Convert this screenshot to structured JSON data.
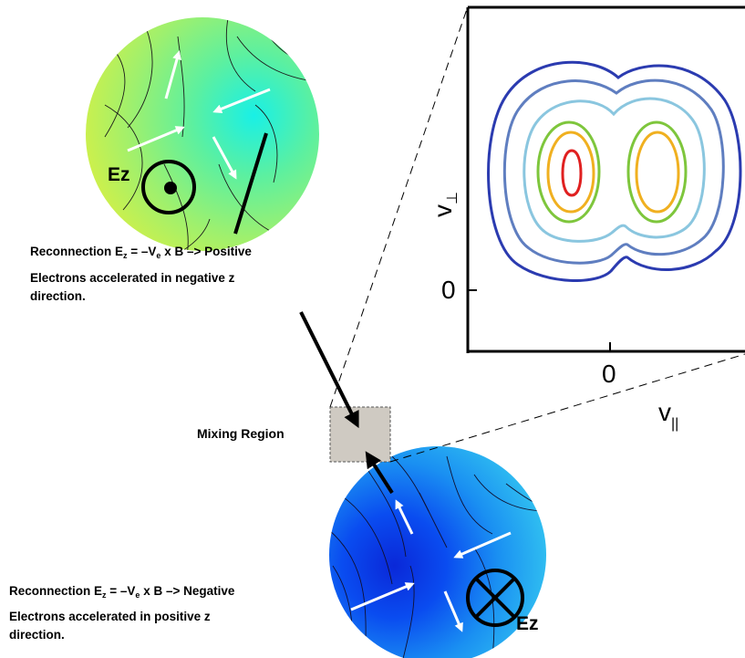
{
  "top_circle": {
    "ez_label": "Ez",
    "caption": {
      "line1": {
        "prefix": "Reconnection E",
        "sub1": "z",
        "mid": " = –V",
        "sub2": "e",
        "suffix": " x B –> Positive"
      },
      "line2": "Electrons accelerated in negative z",
      "line3": "direction."
    }
  },
  "bottom_circle": {
    "ez_label": "Ez",
    "caption": {
      "line1": {
        "prefix": "Reconnection E",
        "sub1": "z",
        "mid": " = –V",
        "sub2": "e",
        "suffix": " x B –> Negative"
      },
      "line2": "Electrons accelerated in positive z",
      "line3": "direction."
    }
  },
  "mixing_region_label": "Mixing Region",
  "plot": {
    "y_axis_label": "v",
    "y_axis_subscript": "⊥",
    "x_axis_label": "v",
    "x_axis_subscript": "||",
    "y_tick": "0",
    "x_tick": "0",
    "contour_colors": [
      "#2b3bb0",
      "#5f7ec0",
      "#8ac6df",
      "#7ec63c",
      "#f0b020",
      "#e02020"
    ]
  }
}
